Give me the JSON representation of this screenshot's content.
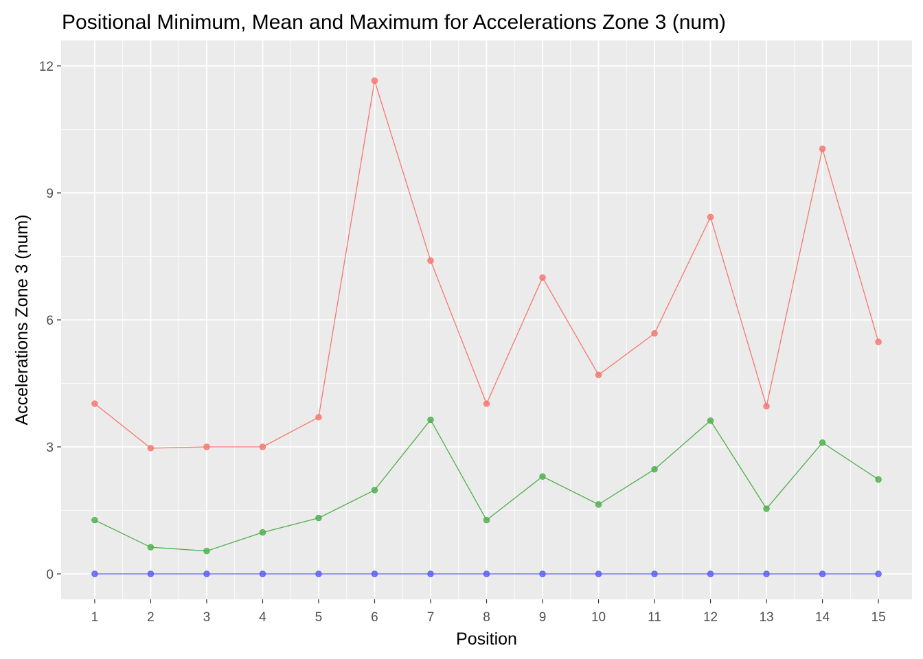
{
  "chart_data": {
    "type": "line",
    "title": "Positional Minimum, Mean and Maximum for Accelerations Zone 3 (num)",
    "xlabel": "Position",
    "ylabel": "Accelerations Zone 3 (num)",
    "x": [
      1,
      2,
      3,
      4,
      5,
      6,
      7,
      8,
      9,
      10,
      11,
      12,
      13,
      14,
      15
    ],
    "x_tick_labels": [
      "1",
      "2",
      "3",
      "4",
      "5",
      "6",
      "7",
      "8",
      "9",
      "10",
      "11",
      "12",
      "13",
      "14",
      "15"
    ],
    "y_ticks": [
      0,
      3,
      6,
      9,
      12
    ],
    "y_tick_labels": [
      "0",
      "3",
      "6",
      "9",
      "12"
    ],
    "xlim": [
      0.4,
      15.6
    ],
    "ylim": [
      -0.6,
      12.6
    ],
    "grid": true,
    "legend": "none",
    "series": [
      {
        "color": "#f8766d",
        "values": [
          4.02,
          2.97,
          3.0,
          3.0,
          3.7,
          11.65,
          7.4,
          4.02,
          7.0,
          4.7,
          5.68,
          8.43,
          3.96,
          10.04,
          5.48
        ]
      },
      {
        "color": "#4daf4a",
        "values": [
          1.27,
          0.63,
          0.54,
          0.98,
          1.32,
          1.98,
          3.64,
          1.27,
          2.3,
          1.64,
          2.47,
          3.62,
          1.54,
          3.1,
          2.23
        ]
      },
      {
        "color": "#5a5aff",
        "values": [
          0,
          0,
          0,
          0,
          0,
          0,
          0,
          0,
          0,
          0,
          0,
          0,
          0,
          0,
          0
        ]
      }
    ]
  }
}
